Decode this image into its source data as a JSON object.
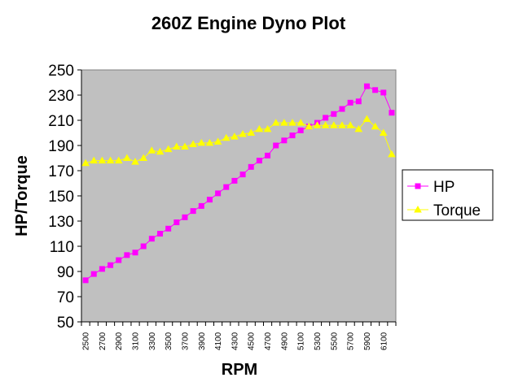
{
  "chart_data": {
    "type": "line",
    "title": "260Z Engine Dyno Plot",
    "xlabel": "RPM",
    "ylabel": "HP/Torque",
    "ylim": [
      50,
      250
    ],
    "yticks": [
      50,
      70,
      90,
      110,
      130,
      150,
      170,
      190,
      210,
      230,
      250
    ],
    "grid": false,
    "legend": "right",
    "plot_background": "#c0c0c0",
    "x": [
      2500,
      2600,
      2700,
      2800,
      2900,
      3000,
      3100,
      3200,
      3300,
      3400,
      3500,
      3600,
      3700,
      3800,
      3900,
      4000,
      4100,
      4200,
      4300,
      4400,
      4500,
      4600,
      4700,
      4800,
      4900,
      5000,
      5100,
      5200,
      5300,
      5400,
      5500,
      5600,
      5700,
      5800,
      5900,
      6000,
      6100,
      6200
    ],
    "xtick_labels": [
      "2500",
      "2700",
      "2900",
      "3100",
      "3300",
      "3500",
      "3700",
      "3900",
      "4100",
      "4300",
      "4500",
      "4700",
      "4900",
      "5100",
      "5300",
      "5500",
      "5700",
      "5900",
      "6100"
    ],
    "series": [
      {
        "name": "HP",
        "color": "#ff00ff",
        "marker": "square",
        "values": [
          83,
          88,
          92,
          95,
          99,
          103,
          105,
          110,
          116,
          120,
          124,
          129,
          133,
          138,
          142,
          147,
          152,
          157,
          162,
          167,
          173,
          178,
          182,
          190,
          194,
          198,
          202,
          205,
          208,
          212,
          215,
          219,
          224,
          225,
          237,
          234,
          232,
          216
        ]
      },
      {
        "name": "Torque",
        "color": "#ffff00",
        "marker": "triangle",
        "values": [
          176,
          178,
          178,
          178,
          178,
          180,
          177,
          180,
          186,
          185,
          187,
          189,
          189,
          191,
          192,
          192,
          193,
          196,
          197,
          199,
          200,
          203,
          203,
          208,
          208,
          208,
          208,
          205,
          206,
          206,
          206,
          206,
          206,
          203,
          211,
          205,
          200,
          183
        ]
      }
    ]
  }
}
